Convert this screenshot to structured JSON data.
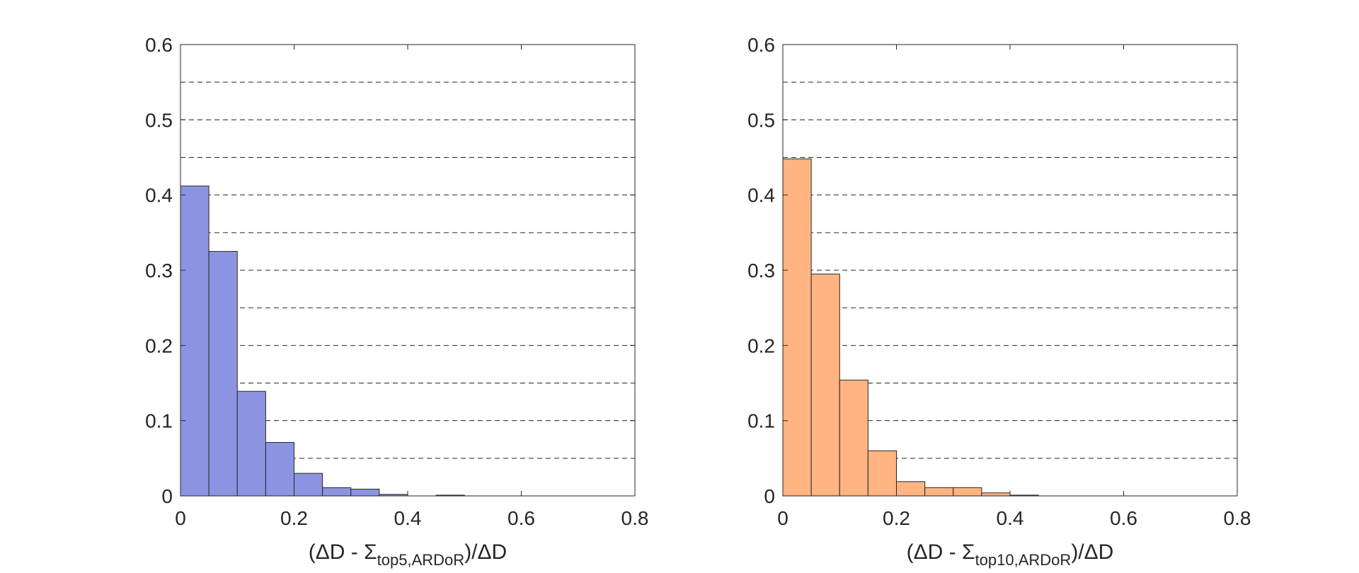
{
  "chart_data": [
    {
      "type": "bar",
      "xlabel": {
        "pre": "(ΔD - Σ",
        "sub": "top5,ARDoR",
        "post": ")/ΔD"
      },
      "xlim": [
        0,
        0.8
      ],
      "ylim": [
        0,
        0.6
      ],
      "xticks": [
        "0",
        "0.2",
        "0.4",
        "0.6",
        "0.8"
      ],
      "yticks": [
        "0",
        "0.1",
        "0.2",
        "0.3",
        "0.4",
        "0.5",
        "0.6"
      ],
      "grid": "horizontal dashed every 0.05",
      "bin_edges": [
        0,
        0.05,
        0.1,
        0.15,
        0.2,
        0.25,
        0.3,
        0.35,
        0.4,
        0.45,
        0.5,
        0.55,
        0.6,
        0.65,
        0.7,
        0.75,
        0.8
      ],
      "values": [
        0.412,
        0.325,
        0.139,
        0.071,
        0.03,
        0.011,
        0.009,
        0.002,
        0.0,
        0.001,
        0.0,
        0.0,
        0.0,
        0.0,
        0.0,
        0.0
      ],
      "color": "#8c94e2"
    },
    {
      "type": "bar",
      "xlabel": {
        "pre": "(ΔD - Σ",
        "sub": "top10,ARDoR",
        "post": ")/ΔD"
      },
      "xlim": [
        0,
        0.8
      ],
      "ylim": [
        0,
        0.6
      ],
      "xticks": [
        "0",
        "0.2",
        "0.4",
        "0.6",
        "0.8"
      ],
      "yticks": [
        "0",
        "0.1",
        "0.2",
        "0.3",
        "0.4",
        "0.5",
        "0.6"
      ],
      "grid": "horizontal dashed every 0.05",
      "bin_edges": [
        0,
        0.05,
        0.1,
        0.15,
        0.2,
        0.25,
        0.3,
        0.35,
        0.4,
        0.45,
        0.5,
        0.55,
        0.6,
        0.65,
        0.7,
        0.75,
        0.8
      ],
      "values": [
        0.448,
        0.295,
        0.154,
        0.06,
        0.019,
        0.011,
        0.011,
        0.004,
        0.001,
        0.0,
        0.0,
        0.0,
        0.0,
        0.0,
        0.0,
        0.0
      ],
      "color": "#ffb482"
    }
  ]
}
